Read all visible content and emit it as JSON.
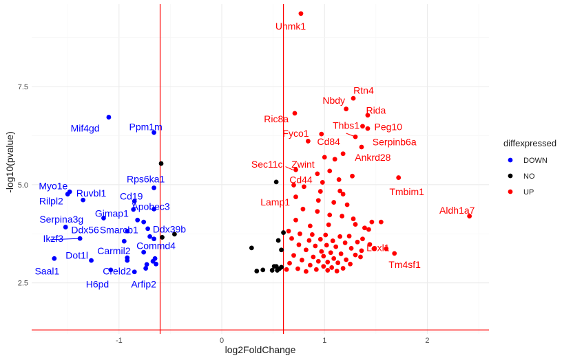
{
  "chart_data": {
    "type": "scatter",
    "title": "",
    "xlabel": "log2FoldChange",
    "ylabel": "-log10(pvalue)",
    "xlim": [
      -1.85,
      2.6
    ],
    "ylim": [
      1.2,
      9.6
    ],
    "x_ticks": [
      -1,
      0,
      1,
      2
    ],
    "y_ticks": [
      2.5,
      5.0,
      7.5
    ],
    "y_tick_labels": [
      "2.5",
      "5.0",
      "7.5"
    ],
    "grid": true,
    "legend": {
      "title": "diffexpressed",
      "position": "right",
      "entries": [
        {
          "label": "DOWN",
          "key": "DOWN"
        },
        {
          "label": "NO",
          "key": "NO"
        },
        {
          "label": "UP",
          "key": "UP"
        }
      ]
    },
    "colors": {
      "DOWN": "#0000ff",
      "NO": "#000000",
      "UP": "#ff0000",
      "ref_line": "#ff0000",
      "grid_major": "#ebebeb",
      "grid_minor": "#f5f5f5"
    },
    "reference_lines": {
      "vertical": [
        -0.6,
        0.6
      ],
      "horizontal": [
        1.3
      ]
    },
    "series": [
      {
        "key": "DOWN",
        "points": [
          [
            -1.1,
            6.72
          ],
          [
            -0.66,
            6.33
          ],
          [
            -1.48,
            4.82
          ],
          [
            -1.5,
            4.76
          ],
          [
            -1.35,
            4.61
          ],
          [
            -0.66,
            4.92
          ],
          [
            -0.85,
            4.58
          ],
          [
            -0.66,
            4.38
          ],
          [
            -0.86,
            4.37
          ],
          [
            -1.15,
            4.15
          ],
          [
            -0.82,
            4.1
          ],
          [
            -0.76,
            4.05
          ],
          [
            -1.52,
            3.92
          ],
          [
            -0.72,
            3.88
          ],
          [
            -0.92,
            3.82
          ],
          [
            -0.7,
            3.68
          ],
          [
            -0.66,
            3.62
          ],
          [
            -1.38,
            3.63
          ],
          [
            -0.95,
            3.56
          ],
          [
            -0.76,
            3.28
          ],
          [
            -1.63,
            3.12
          ],
          [
            -1.27,
            3.07
          ],
          [
            -0.92,
            3.07
          ],
          [
            -0.92,
            3.14
          ],
          [
            -0.65,
            3.12
          ],
          [
            -0.67,
            3.05
          ],
          [
            -0.73,
            2.97
          ],
          [
            -0.64,
            2.98
          ],
          [
            -1.08,
            2.83
          ],
          [
            -0.74,
            2.87
          ],
          [
            -0.85,
            2.78
          ]
        ]
      },
      {
        "key": "NO",
        "points": [
          [
            -0.59,
            5.54
          ],
          [
            0.53,
            5.07
          ],
          [
            -0.46,
            3.74
          ],
          [
            0.6,
            3.78
          ],
          [
            0.55,
            3.58
          ],
          [
            0.29,
            3.39
          ],
          [
            0.58,
            3.34
          ],
          [
            0.51,
            2.92
          ],
          [
            0.53,
            2.92
          ],
          [
            0.54,
            2.82
          ],
          [
            0.4,
            2.83
          ],
          [
            0.34,
            2.8
          ],
          [
            0.49,
            2.82
          ],
          [
            0.56,
            2.86
          ],
          [
            0.58,
            2.9
          ],
          [
            -0.58,
            3.66
          ]
        ]
      },
      {
        "key": "UP",
        "points": [
          [
            0.77,
            9.36
          ],
          [
            1.28,
            7.2
          ],
          [
            1.21,
            6.93
          ],
          [
            1.42,
            6.77
          ],
          [
            1.37,
            6.49
          ],
          [
            1.42,
            6.43
          ],
          [
            0.71,
            6.82
          ],
          [
            1.3,
            6.22
          ],
          [
            1.36,
            5.96
          ],
          [
            1.72,
            5.18
          ],
          [
            2.41,
            4.2
          ],
          [
            1.6,
            3.37
          ],
          [
            1.68,
            3.25
          ],
          [
            0.97,
            6.29
          ],
          [
            0.84,
            6.11
          ],
          [
            1.0,
            5.7
          ],
          [
            1.1,
            5.65
          ],
          [
            1.18,
            5.79
          ],
          [
            0.72,
            5.38
          ],
          [
            0.93,
            5.28
          ],
          [
            1.05,
            5.35
          ],
          [
            1.27,
            5.22
          ],
          [
            1.14,
            5.13
          ],
          [
            0.98,
            5.06
          ],
          [
            0.7,
            4.99
          ],
          [
            0.8,
            4.95
          ],
          [
            0.96,
            4.83
          ],
          [
            1.15,
            4.84
          ],
          [
            1.18,
            4.76
          ],
          [
            0.72,
            4.69
          ],
          [
            0.94,
            4.6
          ],
          [
            1.09,
            4.55
          ],
          [
            1.22,
            4.49
          ],
          [
            0.79,
            4.38
          ],
          [
            0.93,
            4.32
          ],
          [
            1.05,
            4.23
          ],
          [
            1.17,
            4.2
          ],
          [
            1.28,
            4.13
          ],
          [
            1.46,
            4.05
          ],
          [
            0.72,
            4.1
          ],
          [
            0.86,
            3.95
          ],
          [
            1.04,
            3.98
          ],
          [
            1.3,
            3.99
          ],
          [
            1.39,
            3.9
          ],
          [
            0.65,
            3.82
          ],
          [
            0.76,
            3.75
          ],
          [
            0.88,
            3.73
          ],
          [
            1.01,
            3.72
          ],
          [
            1.15,
            3.68
          ],
          [
            1.24,
            3.69
          ],
          [
            1.37,
            3.62
          ],
          [
            0.68,
            3.63
          ],
          [
            0.85,
            3.58
          ],
          [
            0.96,
            3.61
          ],
          [
            1.08,
            3.57
          ],
          [
            1.2,
            3.52
          ],
          [
            1.32,
            3.54
          ],
          [
            1.44,
            3.48
          ],
          [
            0.75,
            3.47
          ],
          [
            0.91,
            3.44
          ],
          [
            1.02,
            3.46
          ],
          [
            1.11,
            3.42
          ],
          [
            1.26,
            3.38
          ],
          [
            1.36,
            3.32
          ],
          [
            0.82,
            3.34
          ],
          [
            0.97,
            3.3
          ],
          [
            1.06,
            3.27
          ],
          [
            1.16,
            3.24
          ],
          [
            1.3,
            3.21
          ],
          [
            0.7,
            3.2
          ],
          [
            0.89,
            3.16
          ],
          [
            0.99,
            3.18
          ],
          [
            1.09,
            3.12
          ],
          [
            1.21,
            3.09
          ],
          [
            0.78,
            3.08
          ],
          [
            0.94,
            3.05
          ],
          [
            1.03,
            3.03
          ],
          [
            1.13,
            3.01
          ],
          [
            1.25,
            2.98
          ],
          [
            0.66,
            3.0
          ],
          [
            0.86,
            2.95
          ],
          [
            0.99,
            2.92
          ],
          [
            1.07,
            2.89
          ],
          [
            1.18,
            2.87
          ],
          [
            0.74,
            2.86
          ],
          [
            0.92,
            2.84
          ],
          [
            1.03,
            2.82
          ],
          [
            1.12,
            2.8
          ],
          [
            0.82,
            2.79
          ],
          [
            0.63,
            2.84
          ],
          [
            1.48,
            3.37
          ],
          [
            1.55,
            4.05
          ],
          [
            1.43,
            3.86
          ],
          [
            1.35,
            3.16
          ]
        ]
      }
    ],
    "labels": [
      {
        "text": "Uhmk1",
        "x": 0.67,
        "y": 9.04,
        "color": "UP",
        "anchor": "middle"
      },
      {
        "text": "Rtn4",
        "x": 1.38,
        "y": 7.4,
        "color": "UP",
        "anchor": "middle"
      },
      {
        "text": "Nbdy",
        "x": 1.09,
        "y": 7.15,
        "color": "UP",
        "anchor": "middle"
      },
      {
        "text": "Rida",
        "x": 1.5,
        "y": 6.9,
        "color": "UP",
        "anchor": "middle"
      },
      {
        "text": "Ric8a",
        "x": 0.53,
        "y": 6.68,
        "color": "UP",
        "anchor": "middle"
      },
      {
        "text": "Thbs1",
        "x": 1.21,
        "y": 6.51,
        "color": "UP",
        "anchor": "middle"
      },
      {
        "text": "Peg10",
        "x": 1.62,
        "y": 6.48,
        "color": "UP",
        "anchor": "middle"
      },
      {
        "text": "Fyco1",
        "x": 0.72,
        "y": 6.31,
        "color": "UP",
        "anchor": "middle"
      },
      {
        "text": "Cd84",
        "x": 1.04,
        "y": 6.1,
        "color": "UP",
        "anchor": "middle"
      },
      {
        "text": "Serpinb6a",
        "x": 1.68,
        "y": 6.09,
        "color": "UP",
        "anchor": "middle"
      },
      {
        "text": "Ankrd28",
        "x": 1.47,
        "y": 5.7,
        "color": "UP",
        "anchor": "middle"
      },
      {
        "text": "Sec11c",
        "x": 0.44,
        "y": 5.52,
        "color": "UP",
        "anchor": "middle"
      },
      {
        "text": "Zwint",
        "x": 0.79,
        "y": 5.52,
        "color": "UP",
        "anchor": "middle"
      },
      {
        "text": "Cd44",
        "x": 0.77,
        "y": 5.13,
        "color": "UP",
        "anchor": "middle"
      },
      {
        "text": "Tmbim1",
        "x": 1.8,
        "y": 4.82,
        "color": "UP",
        "anchor": "middle"
      },
      {
        "text": "Lamp1",
        "x": 0.52,
        "y": 4.56,
        "color": "UP",
        "anchor": "middle"
      },
      {
        "text": "Aldh1a7",
        "x": 2.29,
        "y": 4.35,
        "color": "UP",
        "anchor": "middle"
      },
      {
        "text": "Loxl1",
        "x": 1.52,
        "y": 3.4,
        "color": "UP",
        "anchor": "middle"
      },
      {
        "text": "Tm4sf1",
        "x": 1.78,
        "y": 2.97,
        "color": "UP",
        "anchor": "middle"
      },
      {
        "text": "Mif4gd",
        "x": -1.33,
        "y": 6.44,
        "color": "DOWN",
        "anchor": "middle"
      },
      {
        "text": "Ppm1m",
        "x": -0.74,
        "y": 6.48,
        "color": "DOWN",
        "anchor": "middle"
      },
      {
        "text": "Rps6ka1",
        "x": -0.74,
        "y": 5.15,
        "color": "DOWN",
        "anchor": "middle"
      },
      {
        "text": "Myo1e",
        "x": -1.64,
        "y": 4.97,
        "color": "DOWN",
        "anchor": "middle"
      },
      {
        "text": "Ruvbl1",
        "x": -1.27,
        "y": 4.79,
        "color": "DOWN",
        "anchor": "middle"
      },
      {
        "text": "Cd19",
        "x": -0.88,
        "y": 4.71,
        "color": "DOWN",
        "anchor": "middle"
      },
      {
        "text": "Rilpl2",
        "x": -1.66,
        "y": 4.59,
        "color": "DOWN",
        "anchor": "middle"
      },
      {
        "text": "Apobec3",
        "x": -0.69,
        "y": 4.45,
        "color": "DOWN",
        "anchor": "middle"
      },
      {
        "text": "Gimap1",
        "x": -1.07,
        "y": 4.27,
        "color": "DOWN",
        "anchor": "middle"
      },
      {
        "text": "Serpina3g",
        "x": -1.56,
        "y": 4.12,
        "color": "DOWN",
        "anchor": "middle"
      },
      {
        "text": "Ddx56",
        "x": -1.33,
        "y": 3.85,
        "color": "DOWN",
        "anchor": "middle"
      },
      {
        "text": "Smarcb1",
        "x": -1.0,
        "y": 3.85,
        "color": "DOWN",
        "anchor": "middle"
      },
      {
        "text": "Ddx39b",
        "x": -0.51,
        "y": 3.87,
        "color": "DOWN",
        "anchor": "middle"
      },
      {
        "text": "Ikzf3",
        "x": -1.64,
        "y": 3.63,
        "color": "DOWN",
        "anchor": "middle"
      },
      {
        "text": "Commd4",
        "x": -0.64,
        "y": 3.45,
        "color": "DOWN",
        "anchor": "middle"
      },
      {
        "text": "Carmil2",
        "x": -1.05,
        "y": 3.32,
        "color": "DOWN",
        "anchor": "middle"
      },
      {
        "text": "Dot1l",
        "x": -1.41,
        "y": 3.2,
        "color": "DOWN",
        "anchor": "middle"
      },
      {
        "text": "Creld2",
        "x": -1.02,
        "y": 2.8,
        "color": "DOWN",
        "anchor": "middle"
      },
      {
        "text": "Saal1",
        "x": -1.7,
        "y": 2.8,
        "color": "DOWN",
        "anchor": "middle"
      },
      {
        "text": "H6pd",
        "x": -1.21,
        "y": 2.47,
        "color": "DOWN",
        "anchor": "middle"
      },
      {
        "text": "Arfip2",
        "x": -0.76,
        "y": 2.47,
        "color": "DOWN",
        "anchor": "middle"
      }
    ],
    "segments": [
      {
        "color": "DOWN",
        "from": [
          -1.67,
          3.6
        ],
        "to": [
          -1.38,
          3.63
        ]
      },
      {
        "color": "DOWN",
        "from": [
          -0.87,
          4.54
        ],
        "to": [
          -0.85,
          4.4
        ]
      },
      {
        "color": "UP",
        "from": [
          1.21,
          6.31
        ],
        "to": [
          1.3,
          6.22
        ]
      },
      {
        "color": "UP",
        "from": [
          0.62,
          5.46
        ],
        "to": [
          0.69,
          5.38
        ]
      }
    ]
  }
}
